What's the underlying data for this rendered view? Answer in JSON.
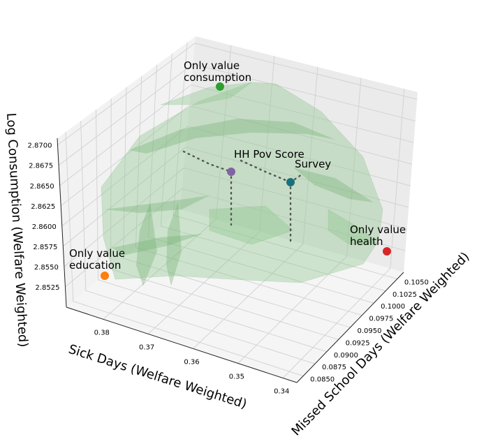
{
  "chart_data": {
    "type": "scatter",
    "projection": "3d",
    "xlabel": "Sick Days (Welfare Weighted)",
    "ylabel": "Missed School Days (Welfare Weighted)",
    "zlabel": "Log Consumption (Welfare Weighted)",
    "x_ticks": [
      "0.38",
      "0.37",
      "0.36",
      "0.35",
      "0.34"
    ],
    "y_ticks": [
      "0.0850",
      "0.0875",
      "0.0900",
      "0.0925",
      "0.0950",
      "0.0975",
      "0.1000",
      "0.1025",
      "0.1050"
    ],
    "z_ticks": [
      "2.8525",
      "2.8550",
      "2.8575",
      "2.8600",
      "2.8625",
      "2.8650",
      "2.8675",
      "2.8700"
    ],
    "grid": true,
    "surface": {
      "description_color": "#8cc68c",
      "style": "translucent green frontier surface"
    },
    "points": [
      {
        "label_line1": "Only value",
        "label_line2": "consumption",
        "color": "#2ca02c",
        "x": 0.365,
        "y": 0.097,
        "z": 2.8735
      },
      {
        "label_line1": "HH Pov Score",
        "label_line2": "",
        "color": "#8064a2",
        "x": 0.357,
        "y": 0.095,
        "z": 2.866
      },
      {
        "label_line1": "Survey",
        "label_line2": "",
        "color": "#17717d",
        "x": 0.349,
        "y": 0.097,
        "z": 2.864
      },
      {
        "label_line1": "Only value",
        "label_line2": "health",
        "color": "#d62728",
        "x": 0.334,
        "y": 0.1045,
        "z": 2.8595
      },
      {
        "label_line1": "Only value",
        "label_line2": "education",
        "color": "#ff7f0e",
        "x": 0.383,
        "y": 0.0855,
        "z": 2.8545
      }
    ]
  }
}
